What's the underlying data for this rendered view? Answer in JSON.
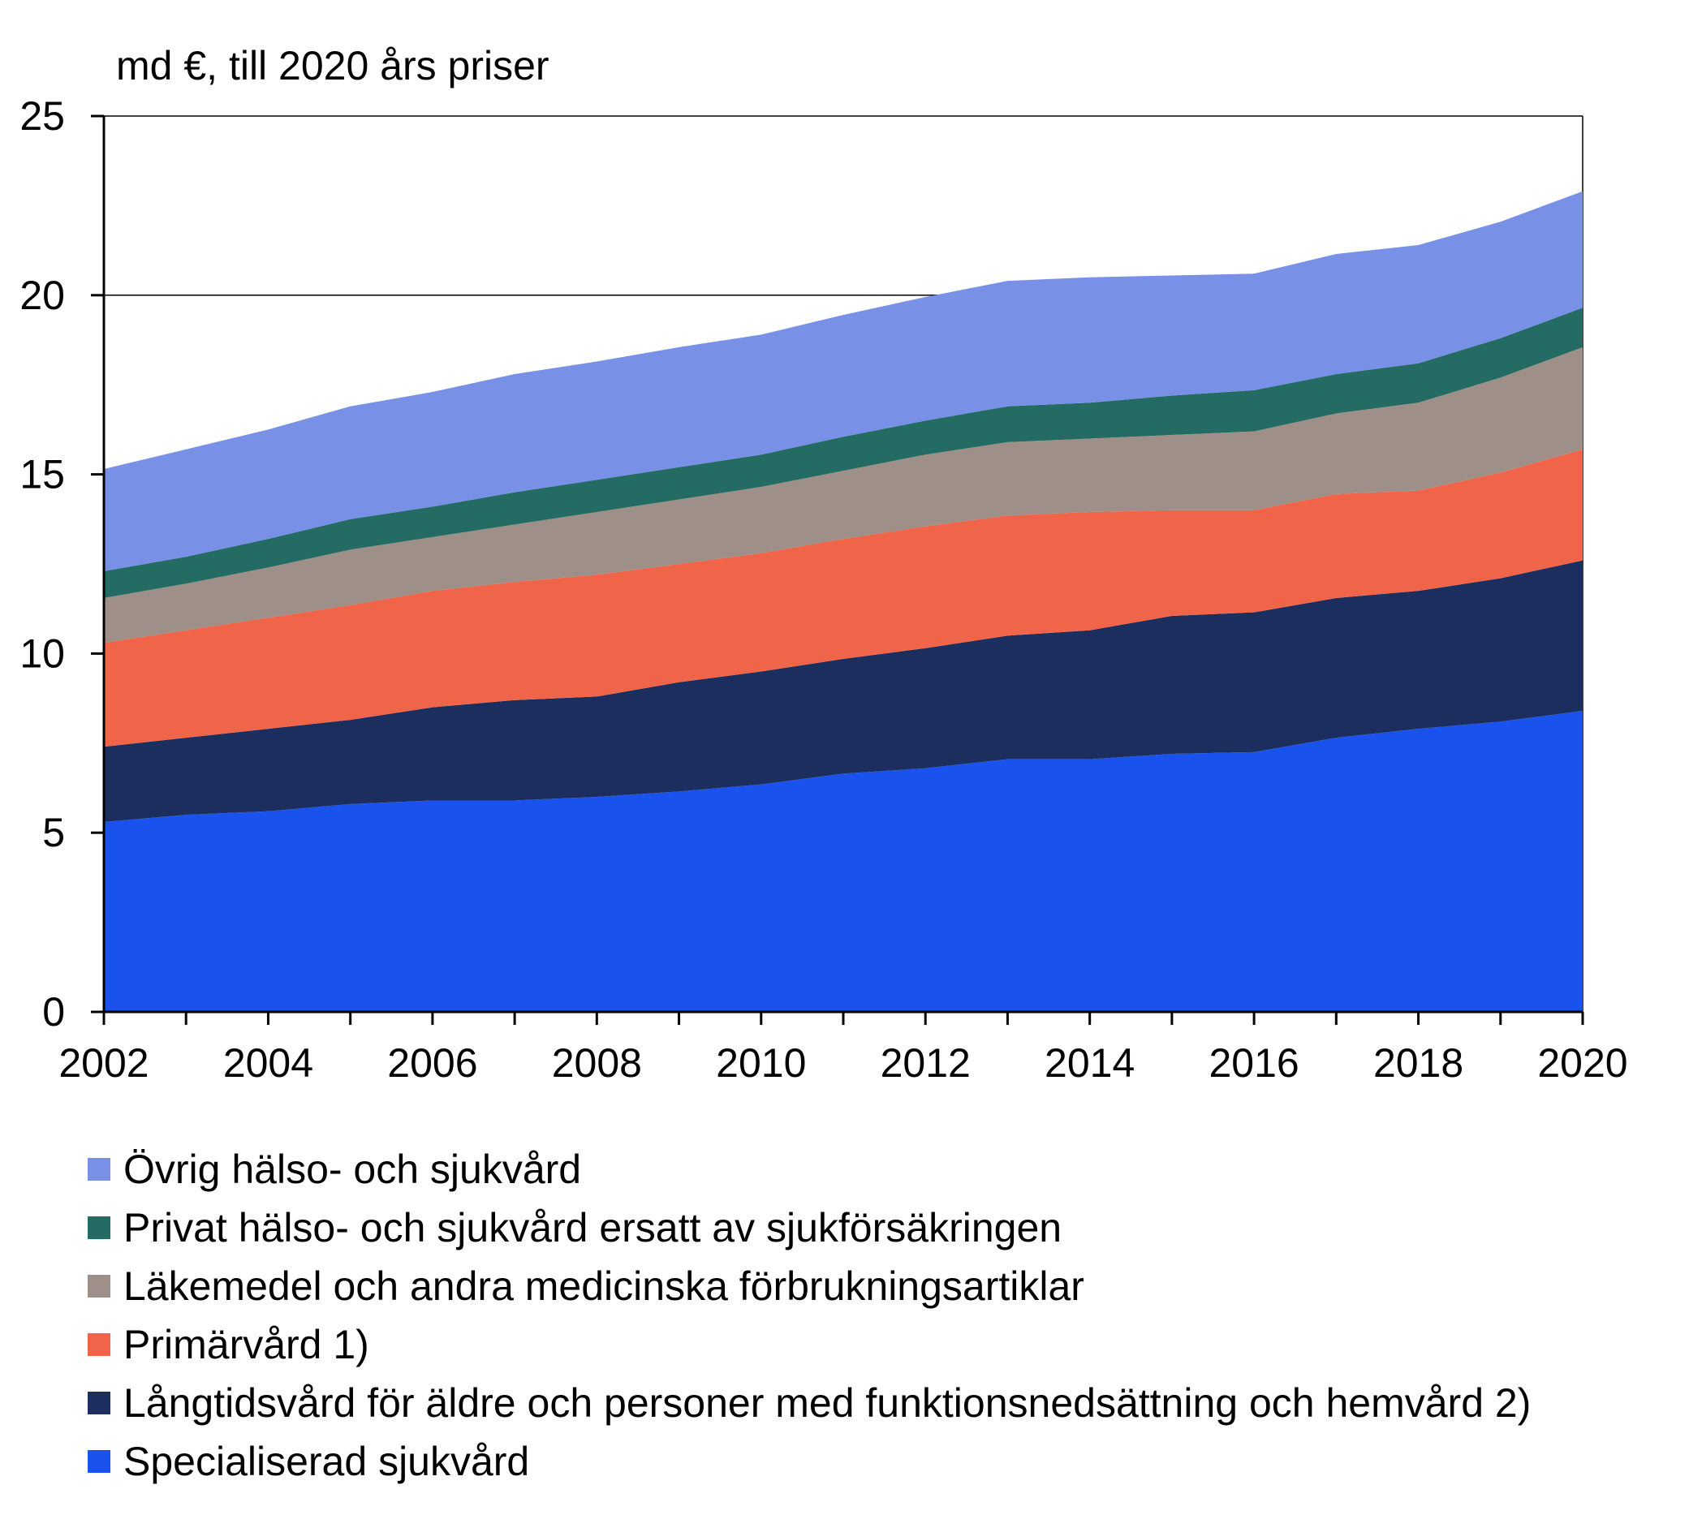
{
  "chart_data": {
    "type": "area",
    "stacked": true,
    "unit_label": "md €, till 2020 års priser",
    "title": "",
    "xlabel": "",
    "ylabel": "",
    "x": [
      2002,
      2003,
      2004,
      2005,
      2006,
      2007,
      2008,
      2009,
      2010,
      2011,
      2012,
      2013,
      2014,
      2015,
      2016,
      2017,
      2018,
      2019,
      2020
    ],
    "xticks": [
      "2002",
      "2004",
      "2006",
      "2008",
      "2010",
      "2012",
      "2014",
      "2016",
      "2018",
      "2020"
    ],
    "yticks": [
      "0",
      "5",
      "10",
      "15",
      "20",
      "25"
    ],
    "ylim": [
      0,
      25
    ],
    "xlim": [
      2002,
      2020
    ],
    "grid": "horizontal lines at 20 and 25",
    "legend_position": "bottom",
    "series": [
      {
        "name": "Specialiserad sjukvård",
        "color": "#1a52ee",
        "values": [
          5.3,
          5.5,
          5.6,
          5.8,
          5.9,
          5.9,
          6.0,
          6.15,
          6.35,
          6.65,
          6.8,
          7.05,
          7.05,
          7.2,
          7.25,
          7.65,
          7.9,
          8.1,
          8.4
        ]
      },
      {
        "name": "Långtidsvård för äldre och personer med funktionsnedsättning och hemvård 2)",
        "color": "#1c2e5e",
        "values": [
          2.1,
          2.15,
          2.3,
          2.35,
          2.6,
          2.8,
          2.8,
          3.05,
          3.15,
          3.2,
          3.35,
          3.45,
          3.6,
          3.85,
          3.9,
          3.9,
          3.85,
          4.0,
          4.2
        ]
      },
      {
        "name": "Primärvård 1)",
        "color": "#f06449",
        "values": [
          2.9,
          3.0,
          3.1,
          3.2,
          3.25,
          3.3,
          3.4,
          3.3,
          3.3,
          3.35,
          3.4,
          3.35,
          3.3,
          2.95,
          2.85,
          2.9,
          2.8,
          2.95,
          3.1
        ]
      },
      {
        "name": "Läkemedel och andra medicinska förbrukningsartiklar",
        "color": "#9e9089",
        "values": [
          1.25,
          1.3,
          1.4,
          1.55,
          1.5,
          1.6,
          1.75,
          1.8,
          1.85,
          1.9,
          2.0,
          2.05,
          2.05,
          2.1,
          2.2,
          2.25,
          2.45,
          2.65,
          2.85
        ]
      },
      {
        "name": "Privat hälso- och sjukvård ersatt av sjukförsäkringen",
        "color": "#236b63",
        "values": [
          0.75,
          0.75,
          0.8,
          0.85,
          0.85,
          0.9,
          0.9,
          0.9,
          0.9,
          0.95,
          0.95,
          1.0,
          1.0,
          1.1,
          1.15,
          1.1,
          1.1,
          1.1,
          1.1
        ]
      },
      {
        "name": "Övrig hälso- och sjukvård",
        "color": "#7890e6",
        "values": [
          2.85,
          3.0,
          3.05,
          3.15,
          3.2,
          3.3,
          3.3,
          3.35,
          3.35,
          3.4,
          3.45,
          3.5,
          3.5,
          3.35,
          3.25,
          3.35,
          3.3,
          3.25,
          3.25
        ]
      }
    ]
  }
}
